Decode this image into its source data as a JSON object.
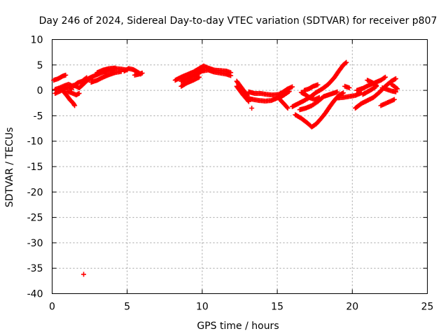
{
  "chart_data": {
    "type": "scatter",
    "title": "Day 246 of 2024, Sidereal Day-to-day VTEC variation (SDTVAR) for receiver p807",
    "xlabel": "GPS time / hours",
    "ylabel": "SDTVAR / TECUs",
    "xlim": [
      0,
      25
    ],
    "ylim": [
      -40,
      10
    ],
    "xticks": [
      "0",
      "5",
      "10",
      "15",
      "20",
      "25"
    ],
    "yticks": [
      "10",
      "5",
      "0",
      "-5",
      "-10",
      "-15",
      "-20",
      "-25",
      "-30",
      "-35",
      "-40"
    ],
    "grid": true,
    "marker": "plus",
    "color": "#ff0000",
    "series": [
      {
        "name": "SDTVAR",
        "segments": [
          [
            [
              0.1,
              2.0
            ],
            [
              0.4,
              2.3
            ],
            [
              0.7,
              2.8
            ],
            [
              0.9,
              3.0
            ]
          ],
          [
            [
              0.2,
              0.2
            ],
            [
              0.5,
              0.5
            ],
            [
              0.8,
              0.9
            ],
            [
              1.1,
              1.2
            ],
            [
              1.4,
              0.8
            ],
            [
              1.7,
              1.5
            ],
            [
              2.0,
              1.8
            ],
            [
              2.3,
              2.5
            ]
          ],
          [
            [
              0.2,
              -0.6
            ],
            [
              0.5,
              -0.2
            ],
            [
              0.8,
              0.3
            ],
            [
              1.1,
              0.6
            ],
            [
              1.3,
              0.2
            ]
          ],
          [
            [
              0.6,
              0.4
            ],
            [
              0.8,
              -0.4
            ],
            [
              1.0,
              -1.1
            ],
            [
              1.2,
              -1.9
            ],
            [
              1.4,
              -2.5
            ],
            [
              1.5,
              -3.0
            ]
          ],
          [
            [
              1.0,
              -0.2
            ],
            [
              1.3,
              -0.5
            ],
            [
              1.6,
              -0.9
            ],
            [
              1.8,
              -0.6
            ]
          ],
          [
            [
              1.4,
              1.0
            ],
            [
              1.6,
              0.8
            ],
            [
              1.8,
              0.5
            ],
            [
              2.0,
              1.0
            ],
            [
              2.2,
              1.6
            ],
            [
              2.4,
              2.1
            ],
            [
              2.7,
              2.6
            ]
          ],
          [
            [
              2.1,
              -36.2
            ]
          ],
          [
            [
              2.2,
              2.0
            ],
            [
              2.6,
              2.6
            ],
            [
              3.0,
              3.1
            ],
            [
              3.4,
              3.6
            ],
            [
              3.8,
              4.0
            ],
            [
              4.2,
              4.3
            ],
            [
              4.6,
              4.2
            ],
            [
              5.0,
              4.0
            ]
          ],
          [
            [
              2.6,
              1.6
            ],
            [
              3.0,
              2.0
            ],
            [
              3.4,
              2.6
            ],
            [
              3.8,
              3.1
            ],
            [
              4.2,
              3.5
            ],
            [
              4.6,
              3.7
            ]
          ],
          [
            [
              3.0,
              3.5
            ],
            [
              3.4,
              4.0
            ],
            [
              3.8,
              4.3
            ],
            [
              4.2,
              4.4
            ]
          ],
          [
            [
              4.8,
              3.8
            ],
            [
              5.1,
              4.3
            ],
            [
              5.4,
              4.1
            ],
            [
              5.7,
              3.6
            ],
            [
              5.9,
              3.2
            ]
          ],
          [
            [
              5.5,
              3.0
            ],
            [
              5.8,
              3.2
            ],
            [
              6.0,
              3.4
            ]
          ],
          [
            [
              8.2,
              2.0
            ],
            [
              8.6,
              2.6
            ],
            [
              9.0,
              3.1
            ],
            [
              9.4,
              3.6
            ],
            [
              9.8,
              4.3
            ],
            [
              10.1,
              4.8
            ],
            [
              10.4,
              4.4
            ],
            [
              10.8,
              4.0
            ],
            [
              11.2,
              3.9
            ],
            [
              11.6,
              3.8
            ],
            [
              11.9,
              3.5
            ]
          ],
          [
            [
              8.6,
              1.8
            ],
            [
              9.0,
              2.3
            ],
            [
              9.4,
              2.8
            ],
            [
              9.8,
              3.5
            ],
            [
              10.1,
              4.0
            ]
          ],
          [
            [
              8.6,
              0.8
            ],
            [
              9.0,
              1.5
            ],
            [
              9.4,
              2.0
            ],
            [
              9.8,
              2.6
            ]
          ],
          [
            [
              10.0,
              3.8
            ],
            [
              10.4,
              4.0
            ],
            [
              10.8,
              3.6
            ],
            [
              11.2,
              3.4
            ],
            [
              11.6,
              3.2
            ],
            [
              11.9,
              2.9
            ]
          ],
          [
            [
              12.3,
              1.8
            ],
            [
              12.5,
              1.0
            ],
            [
              12.7,
              0.2
            ],
            [
              12.9,
              -0.5
            ],
            [
              13.0,
              -1.0
            ]
          ],
          [
            [
              12.3,
              0.8
            ],
            [
              12.5,
              0.0
            ],
            [
              12.7,
              -0.8
            ],
            [
              12.9,
              -1.5
            ],
            [
              13.1,
              -2.2
            ]
          ],
          [
            [
              13.1,
              -0.3
            ],
            [
              13.5,
              -0.6
            ],
            [
              13.9,
              -0.6
            ],
            [
              14.3,
              -0.8
            ],
            [
              14.7,
              -0.9
            ],
            [
              15.1,
              -0.8
            ],
            [
              15.4,
              -0.3
            ],
            [
              15.7,
              0.3
            ],
            [
              16.0,
              0.7
            ]
          ],
          [
            [
              13.0,
              -1.5
            ],
            [
              13.4,
              -1.8
            ],
            [
              13.8,
              -2.0
            ],
            [
              14.2,
              -2.1
            ],
            [
              14.6,
              -2.0
            ],
            [
              15.0,
              -1.5
            ],
            [
              15.4,
              -1.0
            ],
            [
              15.8,
              -0.2
            ]
          ],
          [
            [
              13.3,
              -3.5
            ]
          ],
          [
            [
              15.1,
              -1.5
            ],
            [
              15.3,
              -2.2
            ],
            [
              15.5,
              -2.8
            ],
            [
              15.7,
              -3.5
            ]
          ],
          [
            [
              16.0,
              -3.2
            ],
            [
              16.4,
              -2.6
            ],
            [
              16.8,
              -2.0
            ],
            [
              17.2,
              -1.3
            ],
            [
              17.6,
              -0.4
            ],
            [
              18.0,
              0.3
            ],
            [
              18.4,
              1.2
            ],
            [
              18.8,
              2.5
            ],
            [
              19.1,
              3.8
            ],
            [
              19.4,
              5.0
            ],
            [
              19.6,
              5.5
            ]
          ],
          [
            [
              16.2,
              -4.8
            ],
            [
              16.6,
              -5.5
            ],
            [
              17.0,
              -6.4
            ],
            [
              17.3,
              -7.2
            ],
            [
              17.6,
              -6.6
            ],
            [
              17.9,
              -5.6
            ],
            [
              18.2,
              -4.5
            ],
            [
              18.5,
              -3.2
            ],
            [
              18.8,
              -2.0
            ],
            [
              19.1,
              -1.0
            ],
            [
              19.4,
              -0.5
            ]
          ],
          [
            [
              16.5,
              -3.8
            ],
            [
              16.9,
              -3.5
            ],
            [
              17.3,
              -3.0
            ],
            [
              17.7,
              -2.2
            ],
            [
              18.1,
              -1.2
            ],
            [
              18.5,
              -0.8
            ],
            [
              19.0,
              -0.3
            ]
          ],
          [
            [
              16.6,
              -0.4
            ],
            [
              16.9,
              -0.9
            ],
            [
              17.2,
              -1.5
            ],
            [
              17.5,
              -1.8
            ],
            [
              17.8,
              -1.4
            ]
          ],
          [
            [
              16.8,
              0.0
            ],
            [
              17.1,
              0.3
            ],
            [
              17.4,
              0.8
            ],
            [
              17.7,
              1.1
            ]
          ],
          [
            [
              19.0,
              -1.5
            ],
            [
              19.4,
              -1.4
            ],
            [
              19.8,
              -1.2
            ],
            [
              20.2,
              -1.0
            ],
            [
              20.6,
              -0.5
            ]
          ],
          [
            [
              19.5,
              0.8
            ],
            [
              19.8,
              0.5
            ]
          ],
          [
            [
              20.2,
              -3.5
            ],
            [
              20.6,
              -2.6
            ],
            [
              21.0,
              -2.0
            ],
            [
              21.4,
              -1.4
            ],
            [
              21.8,
              -0.4
            ],
            [
              22.2,
              0.8
            ],
            [
              22.6,
              1.8
            ],
            [
              22.9,
              2.3
            ]
          ],
          [
            [
              20.3,
              0.0
            ],
            [
              20.7,
              0.4
            ],
            [
              21.1,
              1.0
            ],
            [
              21.5,
              1.5
            ],
            [
              21.9,
              2.0
            ],
            [
              22.2,
              2.6
            ]
          ],
          [
            [
              20.7,
              -0.8
            ],
            [
              21.0,
              -0.3
            ],
            [
              21.3,
              0.2
            ],
            [
              21.6,
              0.8
            ]
          ],
          [
            [
              21.0,
              2.0
            ],
            [
              21.3,
              1.6
            ],
            [
              21.6,
              1.0
            ]
          ],
          [
            [
              22.0,
              0.5
            ],
            [
              22.3,
              0.2
            ],
            [
              22.6,
              -0.1
            ],
            [
              22.9,
              -0.3
            ]
          ],
          [
            [
              21.9,
              -3.0
            ],
            [
              22.2,
              -2.6
            ],
            [
              22.5,
              -2.2
            ],
            [
              22.8,
              -1.8
            ]
          ],
          [
            [
              22.6,
              1.2
            ],
            [
              22.8,
              0.8
            ],
            [
              23.0,
              0.3
            ]
          ]
        ]
      }
    ]
  }
}
